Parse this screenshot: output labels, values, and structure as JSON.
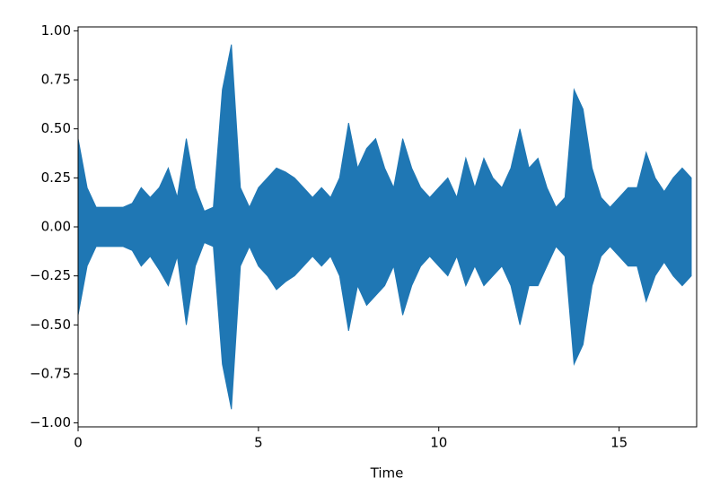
{
  "chart_data": {
    "type": "area",
    "xlabel": "Time",
    "x": [
      0,
      0.25,
      0.5,
      0.75,
      1.0,
      1.25,
      1.5,
      1.75,
      2.0,
      2.25,
      2.5,
      2.75,
      3.0,
      3.25,
      3.5,
      3.75,
      4.0,
      4.25,
      4.5,
      4.75,
      5.0,
      5.25,
      5.5,
      5.75,
      6.0,
      6.25,
      6.5,
      6.75,
      7.0,
      7.25,
      7.5,
      7.75,
      8.0,
      8.25,
      8.5,
      8.75,
      9.0,
      9.25,
      9.5,
      9.75,
      10.0,
      10.25,
      10.5,
      10.75,
      11.0,
      11.25,
      11.5,
      11.75,
      12.0,
      12.25,
      12.5,
      12.75,
      13.0,
      13.25,
      13.5,
      13.75,
      14.0,
      14.25,
      14.5,
      14.75,
      15.0,
      15.25,
      15.5,
      15.75,
      16.0,
      16.25,
      16.5,
      16.75,
      17.0
    ],
    "series": [
      {
        "color": "#1f77b4",
        "values": [
          0.45,
          0.2,
          0.1,
          0.1,
          0.1,
          0.1,
          0.12,
          0.2,
          0.15,
          0.2,
          0.3,
          0.15,
          0.45,
          0.2,
          0.08,
          0.1,
          0.7,
          0.93,
          0.2,
          0.1,
          0.2,
          0.25,
          0.3,
          0.28,
          0.25,
          0.2,
          0.15,
          0.2,
          0.15,
          0.25,
          0.53,
          0.3,
          0.4,
          0.45,
          0.3,
          0.2,
          0.45,
          0.3,
          0.2,
          0.15,
          0.2,
          0.25,
          0.15,
          0.35,
          0.2,
          0.35,
          0.25,
          0.2,
          0.3,
          0.5,
          0.3,
          0.35,
          0.2,
          0.1,
          0.15,
          0.7,
          0.6,
          0.3,
          0.15,
          0.1,
          0.15,
          0.2,
          0.2,
          0.38,
          0.25,
          0.18,
          0.25,
          0.3,
          0.25
        ]
      },
      {
        "color": "#1f77b4",
        "values": [
          -0.45,
          -0.2,
          -0.1,
          -0.1,
          -0.1,
          -0.1,
          -0.12,
          -0.2,
          -0.15,
          -0.22,
          -0.3,
          -0.15,
          -0.5,
          -0.2,
          -0.08,
          -0.1,
          -0.7,
          -0.93,
          -0.2,
          -0.1,
          -0.2,
          -0.25,
          -0.32,
          -0.28,
          -0.25,
          -0.2,
          -0.15,
          -0.2,
          -0.15,
          -0.25,
          -0.53,
          -0.3,
          -0.4,
          -0.35,
          -0.3,
          -0.2,
          -0.45,
          -0.3,
          -0.2,
          -0.15,
          -0.2,
          -0.25,
          -0.15,
          -0.3,
          -0.2,
          -0.3,
          -0.25,
          -0.2,
          -0.3,
          -0.5,
          -0.3,
          -0.3,
          -0.2,
          -0.1,
          -0.15,
          -0.7,
          -0.6,
          -0.3,
          -0.15,
          -0.1,
          -0.15,
          -0.2,
          -0.2,
          -0.38,
          -0.25,
          -0.18,
          -0.25,
          -0.3,
          -0.25
        ]
      }
    ],
    "xlim": [
      0,
      17.15
    ],
    "xticks": [
      0,
      5,
      10,
      15
    ],
    "ylim": [
      -1.02,
      1.02
    ],
    "yticks": [
      {
        "value": -1,
        "label": "−1.00"
      },
      {
        "value": -0.75,
        "label": "−0.75"
      },
      {
        "value": -0.5,
        "label": "−0.50"
      },
      {
        "value": -0.25,
        "label": "−0.25"
      },
      {
        "value": 0,
        "label": "0.00"
      },
      {
        "value": 0.25,
        "label": "0.25"
      },
      {
        "value": 0.5,
        "label": "0.50"
      },
      {
        "value": 0.75,
        "label": "0.75"
      },
      {
        "value": 1,
        "label": "1.00"
      }
    ]
  }
}
